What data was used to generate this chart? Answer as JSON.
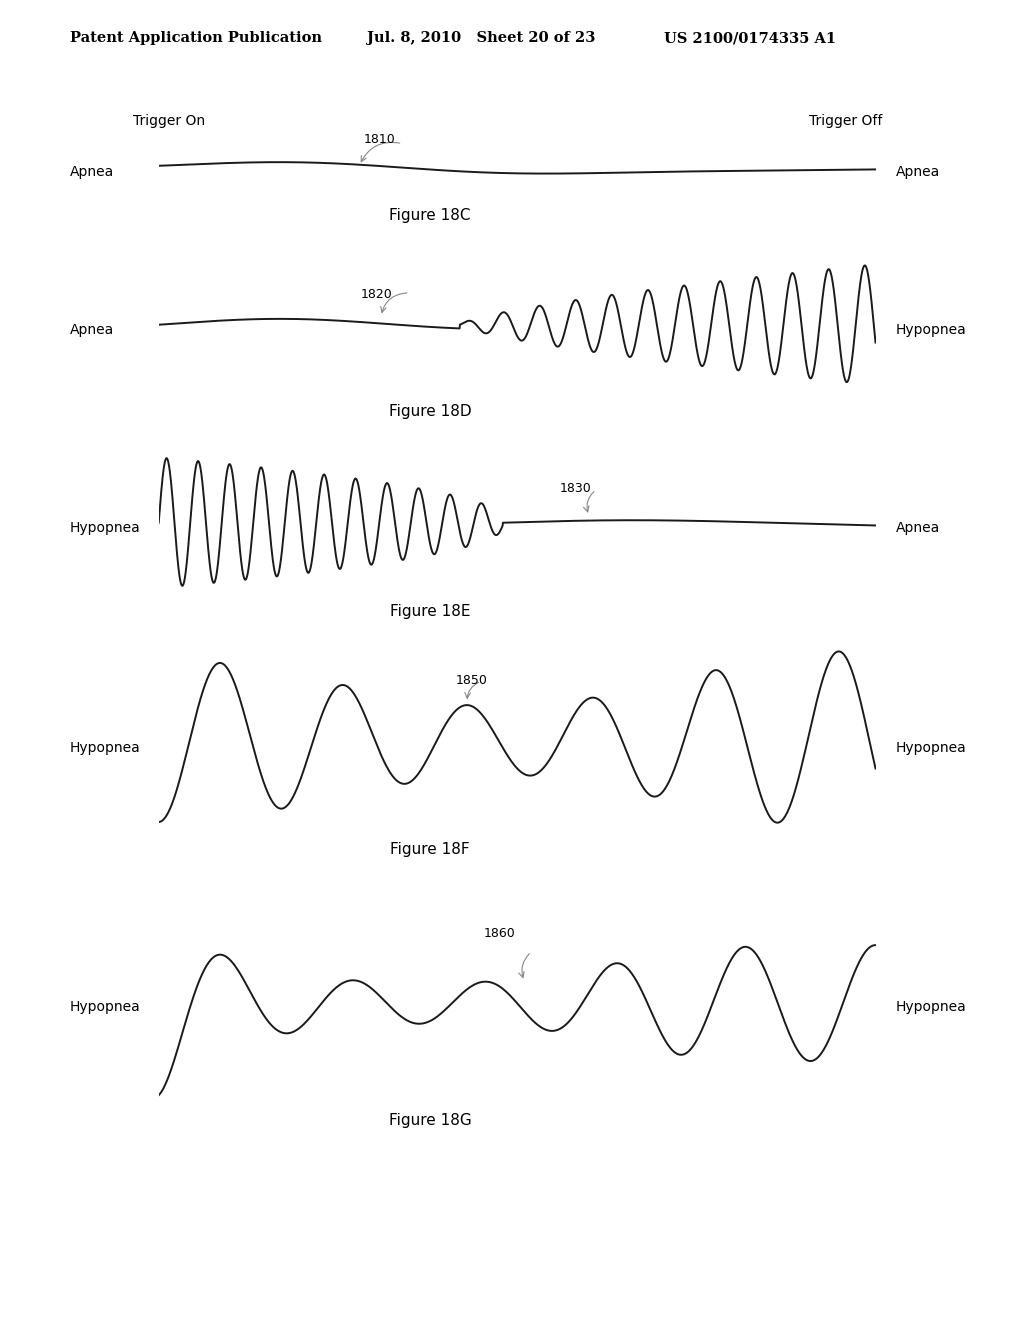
{
  "bg_color": "#ffffff",
  "text_color": "#000000",
  "line_color": "#1a1a1a",
  "header_left": "Patent Application Publication",
  "header_mid": "Jul. 8, 2010   Sheet 20 of 23",
  "header_right": "US 2100/0174335 A1",
  "header_fontsize": 10.5,
  "trigger_on_label": "Trigger On",
  "trigger_off_label": "Trigger Off",
  "label_fontsize": 10,
  "annotation_fontsize": 9,
  "fig_label_fontsize": 11
}
